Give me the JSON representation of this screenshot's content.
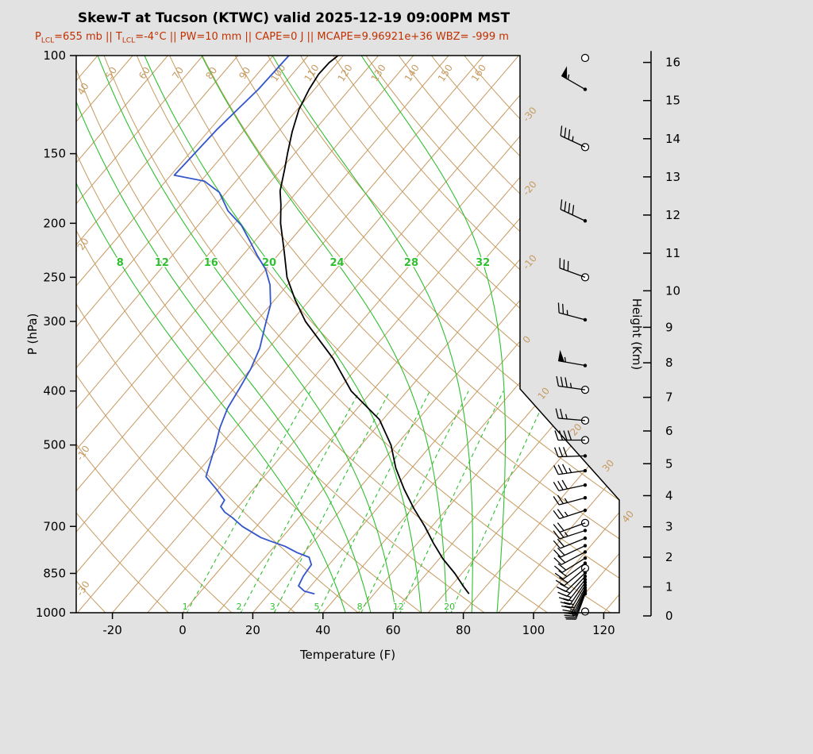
{
  "chart": {
    "title": "Skew-T at Tucson (KTWC) valid 2025-12-19 09:00PM MST",
    "subtitle": {
      "s1": "P",
      "sub1": "LCL",
      "s2": "=655 mb || T",
      "sub2": "LCL",
      "s3": "=-4°C || PW=10 mm || CAPE=0 J || MCAPE=9.96921e+36 WBZ= -999 m"
    }
  },
  "colors": {
    "background": "#e2e2e2",
    "plot_bg": "#ffffff",
    "isotherm": "#c69a60",
    "moist": "#2fbf2f",
    "temperature": "#000000",
    "dewpoint": "#3355cc",
    "subtitle": "#c23000",
    "axis": "#000000"
  },
  "chart_data": {
    "type": "skewt",
    "station": "KTWC",
    "location": "Tucson",
    "valid": "2025-12-19 09:00PM MST",
    "params": {
      "p_lcl_mb": 655,
      "t_lcl_c": -4,
      "pw_mm": 10,
      "cape_j": 0,
      "mcape": "9.96921e+36",
      "wbz_m": -999
    },
    "axes": {
      "xlabel": "Temperature (F)",
      "ylabel": "P (hPa)",
      "y2label": "Height (Km)",
      "pressure_ticks": [
        100,
        150,
        200,
        250,
        300,
        400,
        500,
        700,
        850,
        1000
      ],
      "temp_ticks_f": [
        -20,
        0,
        20,
        40,
        60,
        80,
        100,
        120
      ],
      "height_ticks_km": [
        0,
        1,
        2,
        3,
        4,
        5,
        6,
        7,
        8,
        9,
        10,
        11,
        12,
        13,
        14,
        15,
        16
      ],
      "p_range": [
        100,
        1000
      ]
    },
    "reference_lines": {
      "isotherm_step_f": 10,
      "isotherm_label_values_c": [
        -30,
        -20,
        -10,
        0,
        10,
        20,
        30,
        40
      ],
      "dry_adiabats_c": {
        "min": -40,
        "max": 160,
        "step": 10
      },
      "dry_adiabat_top_labels_c": [
        50,
        60,
        70,
        80,
        90,
        100,
        110,
        120,
        130,
        140,
        150,
        160
      ],
      "dry_adiabat_left_labels_c": [
        40,
        20,
        -10,
        -30
      ],
      "moist_adiabat_values_c": [
        8,
        12,
        16,
        20,
        24,
        28,
        32
      ],
      "moist_adiabat_label_pressure": 237,
      "mixing_ratio_values_gkg": [
        1,
        2,
        3,
        5,
        8,
        12,
        20
      ]
    },
    "temperature_profile_f": [
      [
        925,
        77
      ],
      [
        900,
        74
      ],
      [
        850,
        68
      ],
      [
        800,
        61
      ],
      [
        750,
        54.5
      ],
      [
        700,
        48
      ],
      [
        650,
        40.5
      ],
      [
        600,
        33
      ],
      [
        550,
        25.5
      ],
      [
        500,
        18.5
      ],
      [
        450,
        9
      ],
      [
        400,
        -6
      ],
      [
        350,
        -19
      ],
      [
        300,
        -36
      ],
      [
        275,
        -44
      ],
      [
        250,
        -52
      ],
      [
        225,
        -59
      ],
      [
        200,
        -67
      ],
      [
        185,
        -71.5
      ],
      [
        175,
        -75
      ],
      [
        160,
        -79
      ],
      [
        150,
        -82
      ],
      [
        137,
        -86
      ],
      [
        125,
        -89.5
      ],
      [
        115,
        -91.5
      ],
      [
        108,
        -92.5
      ],
      [
        103,
        -92.3
      ],
      [
        100,
        -91.5
      ]
    ],
    "dewpoint_profile_f": [
      [
        925,
        33
      ],
      [
        915,
        29.5
      ],
      [
        895,
        26.5
      ],
      [
        860,
        25.5
      ],
      [
        820,
        25
      ],
      [
        795,
        22.5
      ],
      [
        780,
        18
      ],
      [
        760,
        13
      ],
      [
        745,
        8
      ],
      [
        733,
        4
      ],
      [
        700,
        -4
      ],
      [
        675,
        -9
      ],
      [
        660,
        -12.5
      ],
      [
        645,
        -15
      ],
      [
        628,
        -15.5
      ],
      [
        600,
        -20.5
      ],
      [
        570,
        -26.5
      ],
      [
        500,
        -31.5
      ],
      [
        465,
        -34.5
      ],
      [
        430,
        -37
      ],
      [
        395,
        -38.5
      ],
      [
        365,
        -40
      ],
      [
        335,
        -42.5
      ],
      [
        305,
        -46.5
      ],
      [
        280,
        -50
      ],
      [
        258,
        -55
      ],
      [
        242,
        -60
      ],
      [
        228,
        -66
      ],
      [
        215,
        -71.5
      ],
      [
        202,
        -77.5
      ],
      [
        190,
        -85
      ],
      [
        176,
        -92
      ],
      [
        168,
        -99
      ],
      [
        164,
        -109
      ],
      [
        150,
        -108.5
      ],
      [
        136,
        -108
      ],
      [
        125,
        -107
      ],
      [
        115,
        -106
      ],
      [
        100,
        -105.5
      ]
    ],
    "wind_barbs": [
      {
        "p": 101,
        "dir": 0,
        "spd": 0,
        "marker": "circle"
      },
      {
        "p": 115,
        "dir": 300,
        "spd": 55,
        "marker": "dot"
      },
      {
        "p": 146,
        "dir": 295,
        "spd": 35,
        "marker": "circle"
      },
      {
        "p": 198,
        "dir": 295,
        "spd": 40,
        "marker": "dot"
      },
      {
        "p": 250,
        "dir": 290,
        "spd": 30,
        "marker": "circle"
      },
      {
        "p": 298,
        "dir": 285,
        "spd": 25,
        "marker": "dot"
      },
      {
        "p": 360,
        "dir": 280,
        "spd": 55,
        "marker": "dot"
      },
      {
        "p": 398,
        "dir": 278,
        "spd": 35,
        "marker": "circle"
      },
      {
        "p": 452,
        "dir": 275,
        "spd": 25,
        "marker": "circle"
      },
      {
        "p": 490,
        "dir": 270,
        "spd": 40,
        "marker": "circle"
      },
      {
        "p": 523,
        "dir": 268,
        "spd": 30,
        "marker": "dot"
      },
      {
        "p": 556,
        "dir": 262,
        "spd": 35,
        "marker": "dot"
      },
      {
        "p": 590,
        "dir": 258,
        "spd": 30,
        "marker": "dot"
      },
      {
        "p": 622,
        "dir": 255,
        "spd": 25,
        "marker": "dot"
      },
      {
        "p": 655,
        "dir": 252,
        "spd": 25,
        "marker": "dot"
      },
      {
        "p": 690,
        "dir": 250,
        "spd": 20,
        "marker": "circle"
      },
      {
        "p": 712,
        "dir": 252,
        "spd": 25,
        "marker": "dot"
      },
      {
        "p": 735,
        "dir": 248,
        "spd": 20,
        "marker": "dot"
      },
      {
        "p": 758,
        "dir": 245,
        "spd": 22,
        "marker": "dot"
      },
      {
        "p": 778,
        "dir": 242,
        "spd": 20,
        "marker": "dot"
      },
      {
        "p": 798,
        "dir": 238,
        "spd": 22,
        "marker": "dot"
      },
      {
        "p": 815,
        "dir": 234,
        "spd": 20,
        "marker": "dot"
      },
      {
        "p": 832,
        "dir": 230,
        "spd": 20,
        "marker": "circle"
      },
      {
        "p": 848,
        "dir": 226,
        "spd": 22,
        "marker": "dot"
      },
      {
        "p": 860,
        "dir": 222,
        "spd": 20,
        "marker": "dot"
      },
      {
        "p": 872,
        "dir": 218,
        "spd": 22,
        "marker": "dot"
      },
      {
        "p": 882,
        "dir": 214,
        "spd": 20,
        "marker": "dot"
      },
      {
        "p": 892,
        "dir": 211,
        "spd": 22,
        "marker": "dot"
      },
      {
        "p": 902,
        "dir": 208,
        "spd": 20,
        "marker": "dot"
      },
      {
        "p": 910,
        "dir": 206,
        "spd": 18,
        "marker": "dot"
      },
      {
        "p": 916,
        "dir": 204,
        "spd": 18,
        "marker": "dot"
      },
      {
        "p": 921,
        "dir": 202,
        "spd": 15,
        "marker": "dot"
      },
      {
        "p": 925,
        "dir": 200,
        "spd": 15,
        "marker": "dot"
      },
      {
        "p": 995,
        "dir": 0,
        "spd": 0,
        "marker": "circle"
      }
    ]
  }
}
